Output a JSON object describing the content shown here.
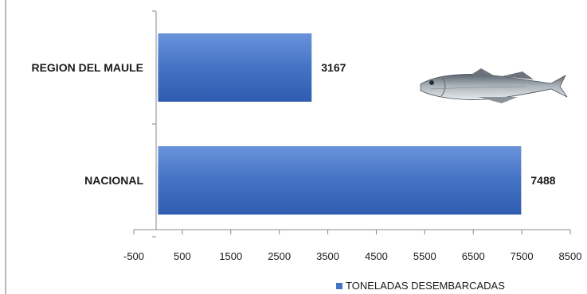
{
  "chart_data": {
    "type": "bar",
    "orientation": "horizontal",
    "categories": [
      "REGION DEL MAULE",
      "NACIONAL"
    ],
    "series": [
      {
        "name": "TONELADAS DESEMBARCADAS",
        "values": [
          3167,
          7488
        ],
        "color": "#4472c4"
      }
    ],
    "data_labels": [
      "3167",
      "7488"
    ],
    "xticks": [
      "-500",
      "500",
      "1500",
      "2500",
      "3500",
      "4500",
      "5500",
      "6500",
      "7500",
      "8500"
    ],
    "xlim": [
      -500,
      8500
    ],
    "title": "",
    "xlabel": "",
    "ylabel": "",
    "legend_position": "bottom-right",
    "grid": false,
    "illustration": "hake-fish"
  }
}
